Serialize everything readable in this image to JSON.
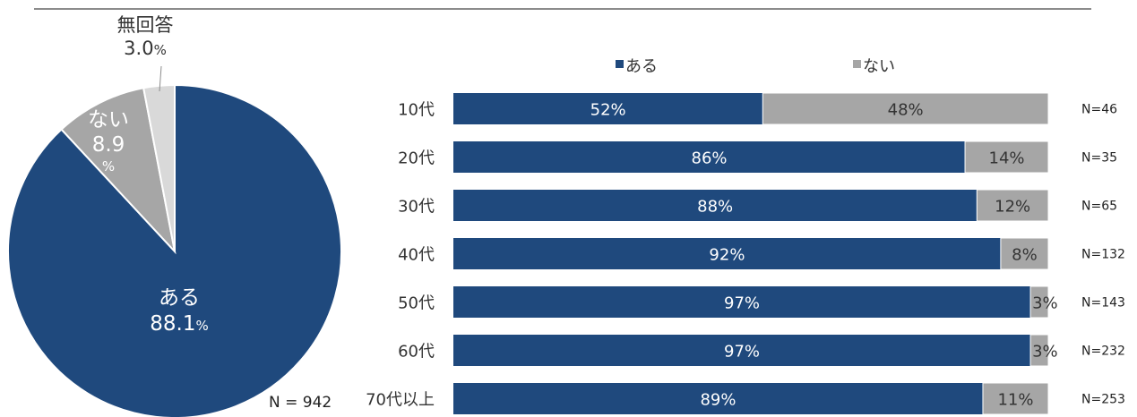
{
  "chart_data": [
    {
      "type": "pie",
      "slices": [
        {
          "label": "ある",
          "value": 88.1,
          "color": "#1f497d"
        },
        {
          "label": "ない",
          "value": 8.9,
          "color": "#a6a6a6"
        },
        {
          "label": "無回答",
          "value": 3.0,
          "color": "#d9d9d9"
        }
      ],
      "labels": {
        "aru_name": "ある",
        "aru_value": "88.1",
        "aru_pct": "%",
        "nai_name": "ない",
        "nai_value": "8.9",
        "nai_pct": "%",
        "mu_name": "無回答",
        "mu_value": "3.0",
        "mu_pct": "%"
      },
      "n_label": "N = 942"
    },
    {
      "type": "bar",
      "orientation": "horizontal",
      "stacked": true,
      "percent_stacked": true,
      "categories": [
        "10代",
        "20代",
        "30代",
        "40代",
        "50代",
        "60代",
        "70代以上"
      ],
      "series": [
        {
          "name": "ある",
          "color": "#1f497d",
          "values": [
            52,
            86,
            88,
            92,
            97,
            97,
            89
          ]
        },
        {
          "name": "ない",
          "color": "#a6a6a6",
          "values": [
            48,
            14,
            12,
            8,
            3,
            3,
            11
          ]
        }
      ],
      "value_labels": {
        "aru": [
          "52%",
          "86%",
          "88%",
          "92%",
          "97%",
          "97%",
          "89%"
        ],
        "nai": [
          "48%",
          "14%",
          "12%",
          "8%",
          "3%",
          "3%",
          "11%"
        ]
      },
      "n_labels": [
        "N=46",
        "N=35",
        "N=65",
        "N=132",
        "N=143",
        "N=232",
        "N=253"
      ],
      "legend_position": "top",
      "xlim": [
        0,
        100
      ]
    }
  ]
}
